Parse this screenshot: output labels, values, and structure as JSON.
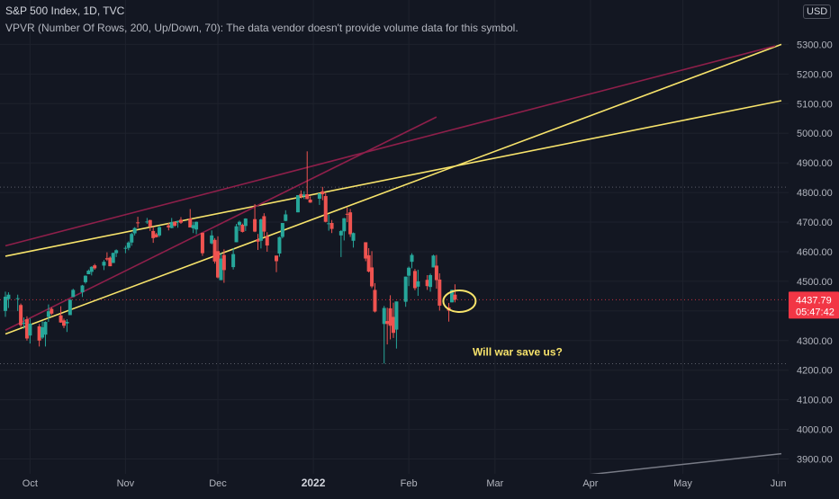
{
  "header": {
    "title": "S&P 500 Index, 1D, TVC",
    "vpvr_notice": "VPVR (Number Of Rows, 200, Up/Down, 70): The data vendor doesn't provide volume data for this symbol.",
    "currency": "USD"
  },
  "price_badge": {
    "price": "4437.79",
    "countdown": "05:47:42",
    "color": "#f23645"
  },
  "colors": {
    "background": "#131722",
    "up": "#26a69a",
    "down": "#ef5350",
    "yellow_line": "#f7e36b",
    "maroon_line": "#8e1f4a",
    "grey_line": "#787b86",
    "annotation_text": "#f7e36b"
  },
  "chart_data": {
    "type": "candlestick",
    "y_axis": {
      "min": 3850,
      "max": 5450,
      "ticks": [
        "3900.00",
        "4000.00",
        "4100.00",
        "4200.00",
        "4300.00",
        "4400.00",
        "4500.00",
        "4600.00",
        "4700.00",
        "4800.00",
        "4900.00",
        "5000.00",
        "5100.00",
        "5200.00",
        "5300.00"
      ]
    },
    "x_axis": {
      "start": "2021-09-23",
      "end": "2022-06-02",
      "ticks": [
        {
          "date": "2021-10-01",
          "label": "Oct"
        },
        {
          "date": "2021-11-01",
          "label": "Nov"
        },
        {
          "date": "2021-12-01",
          "label": "Dec"
        },
        {
          "date": "2022-01-01",
          "label": "2022"
        },
        {
          "date": "2022-02-01",
          "label": "Feb"
        },
        {
          "date": "2022-03-01",
          "label": "Mar"
        },
        {
          "date": "2022-04-01",
          "label": "Apr"
        },
        {
          "date": "2022-05-01",
          "label": "May"
        },
        {
          "date": "2022-06-01",
          "label": "Jun"
        }
      ]
    },
    "horizontal_levels": [
      4818,
      4437.79,
      4222
    ],
    "candles": [
      {
        "d": "2021-09-23",
        "o": 4400,
        "h": 4465,
        "l": 4380,
        "c": 4448
      },
      {
        "d": "2021-09-24",
        "o": 4440,
        "h": 4463,
        "l": 4410,
        "c": 4455
      },
      {
        "d": "2021-09-27",
        "o": 4440,
        "h": 4455,
        "l": 4400,
        "c": 4443
      },
      {
        "d": "2021-09-28",
        "o": 4420,
        "h": 4425,
        "l": 4345,
        "c": 4352
      },
      {
        "d": "2021-09-29",
        "o": 4360,
        "h": 4378,
        "l": 4340,
        "c": 4360
      },
      {
        "d": "2021-09-30",
        "o": 4372,
        "h": 4382,
        "l": 4300,
        "c": 4307
      },
      {
        "d": "2021-10-01",
        "o": 4317,
        "h": 4375,
        "l": 4290,
        "c": 4357
      },
      {
        "d": "2021-10-04",
        "o": 4348,
        "h": 4356,
        "l": 4280,
        "c": 4300
      },
      {
        "d": "2021-10-05",
        "o": 4310,
        "h": 4365,
        "l": 4305,
        "c": 4345
      },
      {
        "d": "2021-10-06",
        "o": 4320,
        "h": 4365,
        "l": 4280,
        "c": 4363
      },
      {
        "d": "2021-10-07",
        "o": 4380,
        "h": 4422,
        "l": 4363,
        "c": 4399
      },
      {
        "d": "2021-10-08",
        "o": 4407,
        "h": 4412,
        "l": 4386,
        "c": 4391
      },
      {
        "d": "2021-10-11",
        "o": 4385,
        "h": 4416,
        "l": 4360,
        "c": 4361
      },
      {
        "d": "2021-10-12",
        "o": 4368,
        "h": 4374,
        "l": 4342,
        "c": 4350
      },
      {
        "d": "2021-10-13",
        "o": 4358,
        "h": 4372,
        "l": 4329,
        "c": 4363
      },
      {
        "d": "2021-10-14",
        "o": 4386,
        "h": 4439,
        "l": 4386,
        "c": 4438
      },
      {
        "d": "2021-10-15",
        "o": 4447,
        "h": 4475,
        "l": 4447,
        "c": 4471
      },
      {
        "d": "2021-10-18",
        "o": 4463,
        "h": 4488,
        "l": 4447,
        "c": 4486
      },
      {
        "d": "2021-10-19",
        "o": 4497,
        "h": 4520,
        "l": 4492,
        "c": 4519
      },
      {
        "d": "2021-10-20",
        "o": 4524,
        "h": 4540,
        "l": 4524,
        "c": 4536
      },
      {
        "d": "2021-10-21",
        "o": 4532,
        "h": 4551,
        "l": 4520,
        "c": 4549
      },
      {
        "d": "2021-10-22",
        "o": 4554,
        "h": 4559,
        "l": 4539,
        "c": 4544
      },
      {
        "d": "2021-10-25",
        "o": 4553,
        "h": 4572,
        "l": 4538,
        "c": 4566
      },
      {
        "d": "2021-10-26",
        "o": 4578,
        "h": 4598,
        "l": 4569,
        "c": 4574
      },
      {
        "d": "2021-10-27",
        "o": 4580,
        "h": 4584,
        "l": 4551,
        "c": 4551
      },
      {
        "d": "2021-10-28",
        "o": 4562,
        "h": 4597,
        "l": 4562,
        "c": 4596
      },
      {
        "d": "2021-10-29",
        "o": 4595,
        "h": 4608,
        "l": 4582,
        "c": 4605
      },
      {
        "d": "2021-11-01",
        "o": 4610,
        "h": 4620,
        "l": 4595,
        "c": 4613
      },
      {
        "d": "2021-11-02",
        "o": 4613,
        "h": 4635,
        "l": 4605,
        "c": 4631
      },
      {
        "d": "2021-11-03",
        "o": 4631,
        "h": 4664,
        "l": 4620,
        "c": 4660
      },
      {
        "d": "2021-11-04",
        "o": 4662,
        "h": 4683,
        "l": 4655,
        "c": 4680
      },
      {
        "d": "2021-11-05",
        "o": 4699,
        "h": 4718,
        "l": 4681,
        "c": 4697
      },
      {
        "d": "2021-11-08",
        "o": 4701,
        "h": 4714,
        "l": 4694,
        "c": 4702
      },
      {
        "d": "2021-11-09",
        "o": 4707,
        "h": 4708,
        "l": 4670,
        "c": 4685
      },
      {
        "d": "2021-11-10",
        "o": 4670,
        "h": 4685,
        "l": 4630,
        "c": 4646
      },
      {
        "d": "2021-11-11",
        "o": 4659,
        "h": 4664,
        "l": 4648,
        "c": 4649
      },
      {
        "d": "2021-11-12",
        "o": 4655,
        "h": 4688,
        "l": 4650,
        "c": 4683
      },
      {
        "d": "2021-11-15",
        "o": 4689,
        "h": 4697,
        "l": 4672,
        "c": 4682
      },
      {
        "d": "2021-11-16",
        "o": 4680,
        "h": 4714,
        "l": 4679,
        "c": 4700
      },
      {
        "d": "2021-11-17",
        "o": 4701,
        "h": 4701,
        "l": 4684,
        "c": 4688
      },
      {
        "d": "2021-11-18",
        "o": 4700,
        "h": 4705,
        "l": 4681,
        "c": 4704
      },
      {
        "d": "2021-11-19",
        "o": 4708,
        "h": 4717,
        "l": 4694,
        "c": 4698
      },
      {
        "d": "2021-11-22",
        "o": 4712,
        "h": 4744,
        "l": 4682,
        "c": 4682
      },
      {
        "d": "2021-11-23",
        "o": 4679,
        "h": 4701,
        "l": 4663,
        "c": 4690
      },
      {
        "d": "2021-11-24",
        "o": 4675,
        "h": 4702,
        "l": 4659,
        "c": 4701
      },
      {
        "d": "2021-11-26",
        "o": 4664,
        "h": 4664,
        "l": 4586,
        "c": 4595
      },
      {
        "d": "2021-11-29",
        "o": 4628,
        "h": 4672,
        "l": 4625,
        "c": 4655
      },
      {
        "d": "2021-11-30",
        "o": 4640,
        "h": 4646,
        "l": 4560,
        "c": 4567
      },
      {
        "d": "2021-12-01",
        "o": 4602,
        "h": 4652,
        "l": 4510,
        "c": 4513
      },
      {
        "d": "2021-12-02",
        "o": 4504,
        "h": 4595,
        "l": 4504,
        "c": 4577
      },
      {
        "d": "2021-12-03",
        "o": 4589,
        "h": 4608,
        "l": 4495,
        "c": 4538
      },
      {
        "d": "2021-12-06",
        "o": 4548,
        "h": 4612,
        "l": 4540,
        "c": 4592
      },
      {
        "d": "2021-12-07",
        "o": 4632,
        "h": 4694,
        "l": 4632,
        "c": 4686
      },
      {
        "d": "2021-12-08",
        "o": 4690,
        "h": 4705,
        "l": 4670,
        "c": 4701
      },
      {
        "d": "2021-12-09",
        "o": 4691,
        "h": 4695,
        "l": 4665,
        "c": 4667
      },
      {
        "d": "2021-12-10",
        "o": 4687,
        "h": 4713,
        "l": 4670,
        "c": 4712
      },
      {
        "d": "2021-12-13",
        "o": 4710,
        "h": 4761,
        "l": 4666,
        "c": 4668
      },
      {
        "d": "2021-12-14",
        "o": 4642,
        "h": 4660,
        "l": 4606,
        "c": 4634
      },
      {
        "d": "2021-12-15",
        "o": 4637,
        "h": 4712,
        "l": 4611,
        "c": 4709
      },
      {
        "d": "2021-12-16",
        "o": 4720,
        "h": 4730,
        "l": 4652,
        "c": 4668
      },
      {
        "d": "2021-12-17",
        "o": 4652,
        "h": 4666,
        "l": 4600,
        "c": 4621
      },
      {
        "d": "2021-12-20",
        "o": 4587,
        "h": 4587,
        "l": 4531,
        "c": 4568
      },
      {
        "d": "2021-12-21",
        "o": 4594,
        "h": 4651,
        "l": 4583,
        "c": 4649
      },
      {
        "d": "2021-12-22",
        "o": 4650,
        "h": 4697,
        "l": 4645,
        "c": 4697
      },
      {
        "d": "2021-12-23",
        "o": 4704,
        "h": 4740,
        "l": 4703,
        "c": 4726
      },
      {
        "d": "2021-12-27",
        "o": 4733,
        "h": 4791,
        "l": 4733,
        "c": 4791
      },
      {
        "d": "2021-12-28",
        "o": 4795,
        "h": 4807,
        "l": 4780,
        "c": 4786
      },
      {
        "d": "2021-12-29",
        "o": 4788,
        "h": 4804,
        "l": 4778,
        "c": 4793
      },
      {
        "d": "2021-12-30",
        "o": 4794,
        "h": 4939,
        "l": 4777,
        "c": 4778
      },
      {
        "d": "2021-12-31",
        "o": 4776,
        "h": 4787,
        "l": 4765,
        "c": 4766
      },
      {
        "d": "2022-01-03",
        "o": 4779,
        "h": 4797,
        "l": 4758,
        "c": 4797
      },
      {
        "d": "2022-01-04",
        "o": 4804,
        "h": 4819,
        "l": 4774,
        "c": 4794
      },
      {
        "d": "2022-01-05",
        "o": 4788,
        "h": 4798,
        "l": 4699,
        "c": 4701
      },
      {
        "d": "2022-01-06",
        "o": 4693,
        "h": 4725,
        "l": 4671,
        "c": 4696
      },
      {
        "d": "2022-01-07",
        "o": 4697,
        "h": 4707,
        "l": 4663,
        "c": 4677
      },
      {
        "d": "2022-01-10",
        "o": 4655,
        "h": 4673,
        "l": 4582,
        "c": 4670
      },
      {
        "d": "2022-01-11",
        "o": 4669,
        "h": 4714,
        "l": 4638,
        "c": 4713
      },
      {
        "d": "2022-01-12",
        "o": 4728,
        "h": 4749,
        "l": 4700,
        "c": 4726
      },
      {
        "d": "2022-01-13",
        "o": 4733,
        "h": 4744,
        "l": 4650,
        "c": 4659
      },
      {
        "d": "2022-01-14",
        "o": 4637,
        "h": 4665,
        "l": 4614,
        "c": 4663
      },
      {
        "d": "2022-01-18",
        "o": 4632,
        "h": 4632,
        "l": 4568,
        "c": 4577
      },
      {
        "d": "2022-01-19",
        "o": 4588,
        "h": 4612,
        "l": 4530,
        "c": 4533
      },
      {
        "d": "2022-01-20",
        "o": 4547,
        "h": 4602,
        "l": 4477,
        "c": 4483
      },
      {
        "d": "2022-01-21",
        "o": 4471,
        "h": 4494,
        "l": 4395,
        "c": 4398
      },
      {
        "d": "2022-01-24",
        "o": 4356,
        "h": 4417,
        "l": 4222,
        "c": 4410
      },
      {
        "d": "2022-01-25",
        "o": 4366,
        "h": 4411,
        "l": 4287,
        "c": 4356
      },
      {
        "d": "2022-01-26",
        "o": 4409,
        "h": 4453,
        "l": 4304,
        "c": 4350
      },
      {
        "d": "2022-01-27",
        "o": 4380,
        "h": 4428,
        "l": 4309,
        "c": 4326
      },
      {
        "d": "2022-01-28",
        "o": 4337,
        "h": 4432,
        "l": 4273,
        "c": 4432
      },
      {
        "d": "2022-01-31",
        "o": 4431,
        "h": 4516,
        "l": 4414,
        "c": 4516
      },
      {
        "d": "2022-02-01",
        "o": 4519,
        "h": 4550,
        "l": 4484,
        "c": 4546
      },
      {
        "d": "2022-02-02",
        "o": 4566,
        "h": 4595,
        "l": 4544,
        "c": 4589
      },
      {
        "d": "2022-02-03",
        "o": 4535,
        "h": 4542,
        "l": 4470,
        "c": 4477
      },
      {
        "d": "2022-02-04",
        "o": 4482,
        "h": 4539,
        "l": 4451,
        "c": 4500
      },
      {
        "d": "2022-02-07",
        "o": 4505,
        "h": 4521,
        "l": 4471,
        "c": 4484
      },
      {
        "d": "2022-02-08",
        "o": 4481,
        "h": 4526,
        "l": 4465,
        "c": 4521
      },
      {
        "d": "2022-02-09",
        "o": 4547,
        "h": 4590,
        "l": 4547,
        "c": 4587
      },
      {
        "d": "2022-02-10",
        "o": 4553,
        "h": 4589,
        "l": 4475,
        "c": 4504
      },
      {
        "d": "2022-02-11",
        "o": 4506,
        "h": 4527,
        "l": 4401,
        "c": 4418
      },
      {
        "d": "2022-02-14",
        "o": 4412,
        "h": 4427,
        "l": 4364,
        "c": 4401
      },
      {
        "d": "2022-02-15",
        "o": 4429,
        "h": 4472,
        "l": 4429,
        "c": 4471
      },
      {
        "d": "2022-02-16",
        "o": 4455,
        "h": 4490,
        "l": 4429,
        "c": 4438
      }
    ],
    "trendlines": [
      {
        "color": "yellow",
        "p1": {
          "d": "2021-09-23",
          "v": 4585
        },
        "p2": {
          "d": "2022-06-02",
          "v": 5110
        }
      },
      {
        "color": "yellow",
        "p1": {
          "d": "2021-09-23",
          "v": 4322
        },
        "p2": {
          "d": "2022-06-02",
          "v": 5300
        }
      },
      {
        "color": "maroon",
        "p1": {
          "d": "2021-09-23",
          "v": 4620
        },
        "p2": {
          "d": "2022-05-31",
          "v": 5295
        }
      },
      {
        "color": "maroon",
        "p1": {
          "d": "2021-09-23",
          "v": 4335
        },
        "p2": {
          "d": "2022-02-10",
          "v": 5055
        }
      },
      {
        "color": "grey",
        "p1": {
          "d": "2022-03-25",
          "v": 3840
        },
        "p2": {
          "d": "2022-06-02",
          "v": 3918
        }
      }
    ],
    "annotations": [
      {
        "text": "Will war save us?",
        "d": "2022-02-03",
        "v": 4274
      }
    ],
    "ellipse": {
      "d": "2022-02-16",
      "v": 4433
    }
  }
}
